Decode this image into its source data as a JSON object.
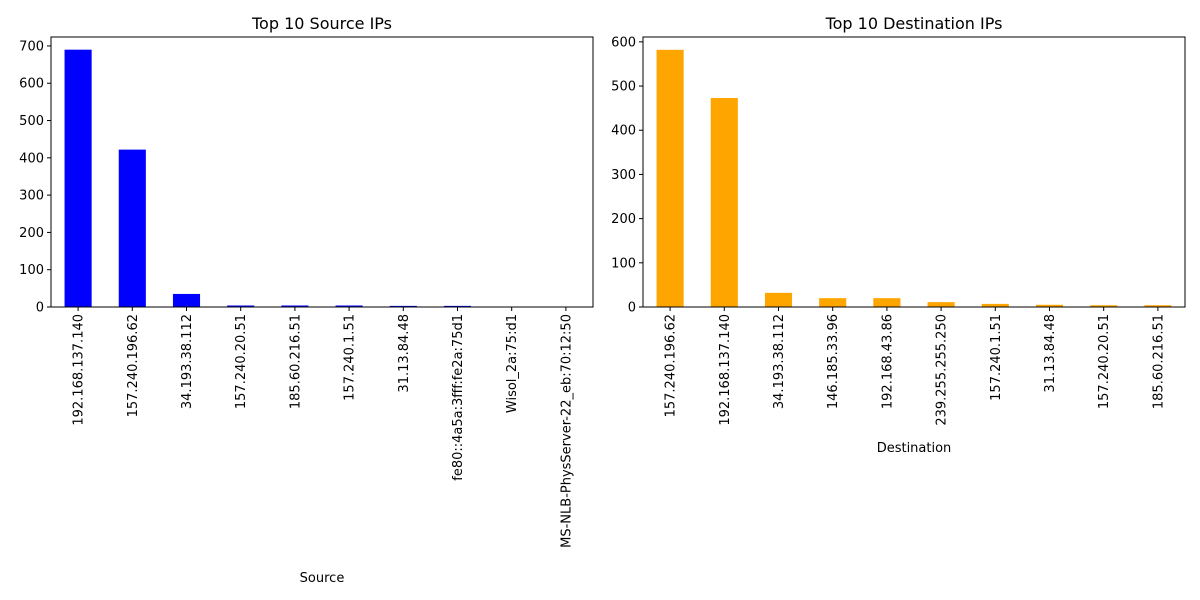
{
  "chart_data": [
    {
      "type": "bar",
      "title": "Top 10 Source IPs",
      "xlabel": "Source",
      "ylabel": "",
      "categories": [
        "192.168.137.140",
        "157.240.196.62",
        "34.193.38.112",
        "157.240.20.51",
        "185.60.216.51",
        "157.240.1.51",
        "31.13.84.48",
        "fe80::4a5a:3fff:fe2a:75d1",
        "Wisol_2a:75:d1",
        "MS-NLB-PhysServer-22_eb:70:12:50"
      ],
      "values": [
        690,
        422,
        35,
        4,
        4,
        4,
        3,
        3,
        1,
        1
      ],
      "ylim": [
        0,
        724
      ],
      "yticks": [
        0,
        100,
        200,
        300,
        400,
        500,
        600,
        700
      ],
      "color": "#0000ff",
      "grid": false,
      "legend": false
    },
    {
      "type": "bar",
      "title": "Top 10 Destination IPs",
      "xlabel": "Destination",
      "ylabel": "",
      "categories": [
        "157.240.196.62",
        "192.168.137.140",
        "34.193.38.112",
        "146.185.33.96",
        "192.168.43.86",
        "239.255.255.250",
        "157.240.1.51",
        "31.13.84.48",
        "157.240.20.51",
        "185.60.216.51"
      ],
      "values": [
        582,
        473,
        32,
        20,
        20,
        11,
        7,
        5,
        4,
        4
      ],
      "ylim": [
        0,
        611
      ],
      "yticks": [
        0,
        100,
        200,
        300,
        400,
        500,
        600
      ],
      "color": "#ffa500",
      "grid": false,
      "legend": false
    }
  ]
}
